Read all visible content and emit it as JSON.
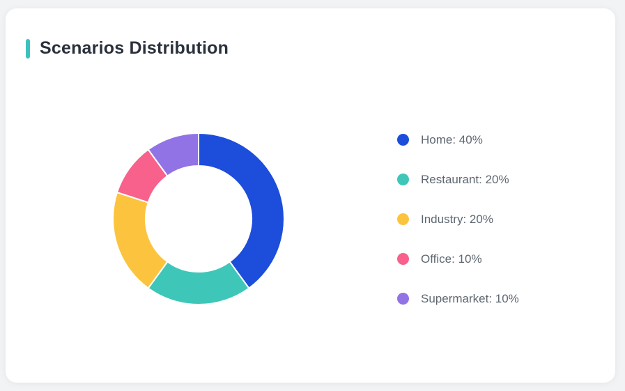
{
  "page": {
    "background_color": "#f1f3f4"
  },
  "card": {
    "title": "Scenarios Distribution",
    "accent_color": "#3cc2bc",
    "background_color": "#ffffff",
    "title_color": "#2a313c"
  },
  "chart_data": {
    "type": "pie",
    "subtype": "donut",
    "title": "Scenarios Distribution",
    "categories": [
      "Home",
      "Restaurant",
      "Industry",
      "Office",
      "Supermarket"
    ],
    "values": [
      40,
      20,
      20,
      10,
      10
    ],
    "unit": "%",
    "colors": [
      "#1c4ddb",
      "#3ec7b8",
      "#fcc43e",
      "#f7618c",
      "#9173e5"
    ],
    "legend_labels": [
      "Home: 40%",
      "Restaurant: 20%",
      "Industry: 20%",
      "Office: 10%",
      "Supermarket: 10%"
    ],
    "legend_position": "right",
    "legend_text_color": "#5e6771",
    "start_angle_deg": 0,
    "sweep_direction": "clockwise",
    "inner_radius_ratio": 0.62,
    "slice_gap_color": "#ffffff"
  }
}
